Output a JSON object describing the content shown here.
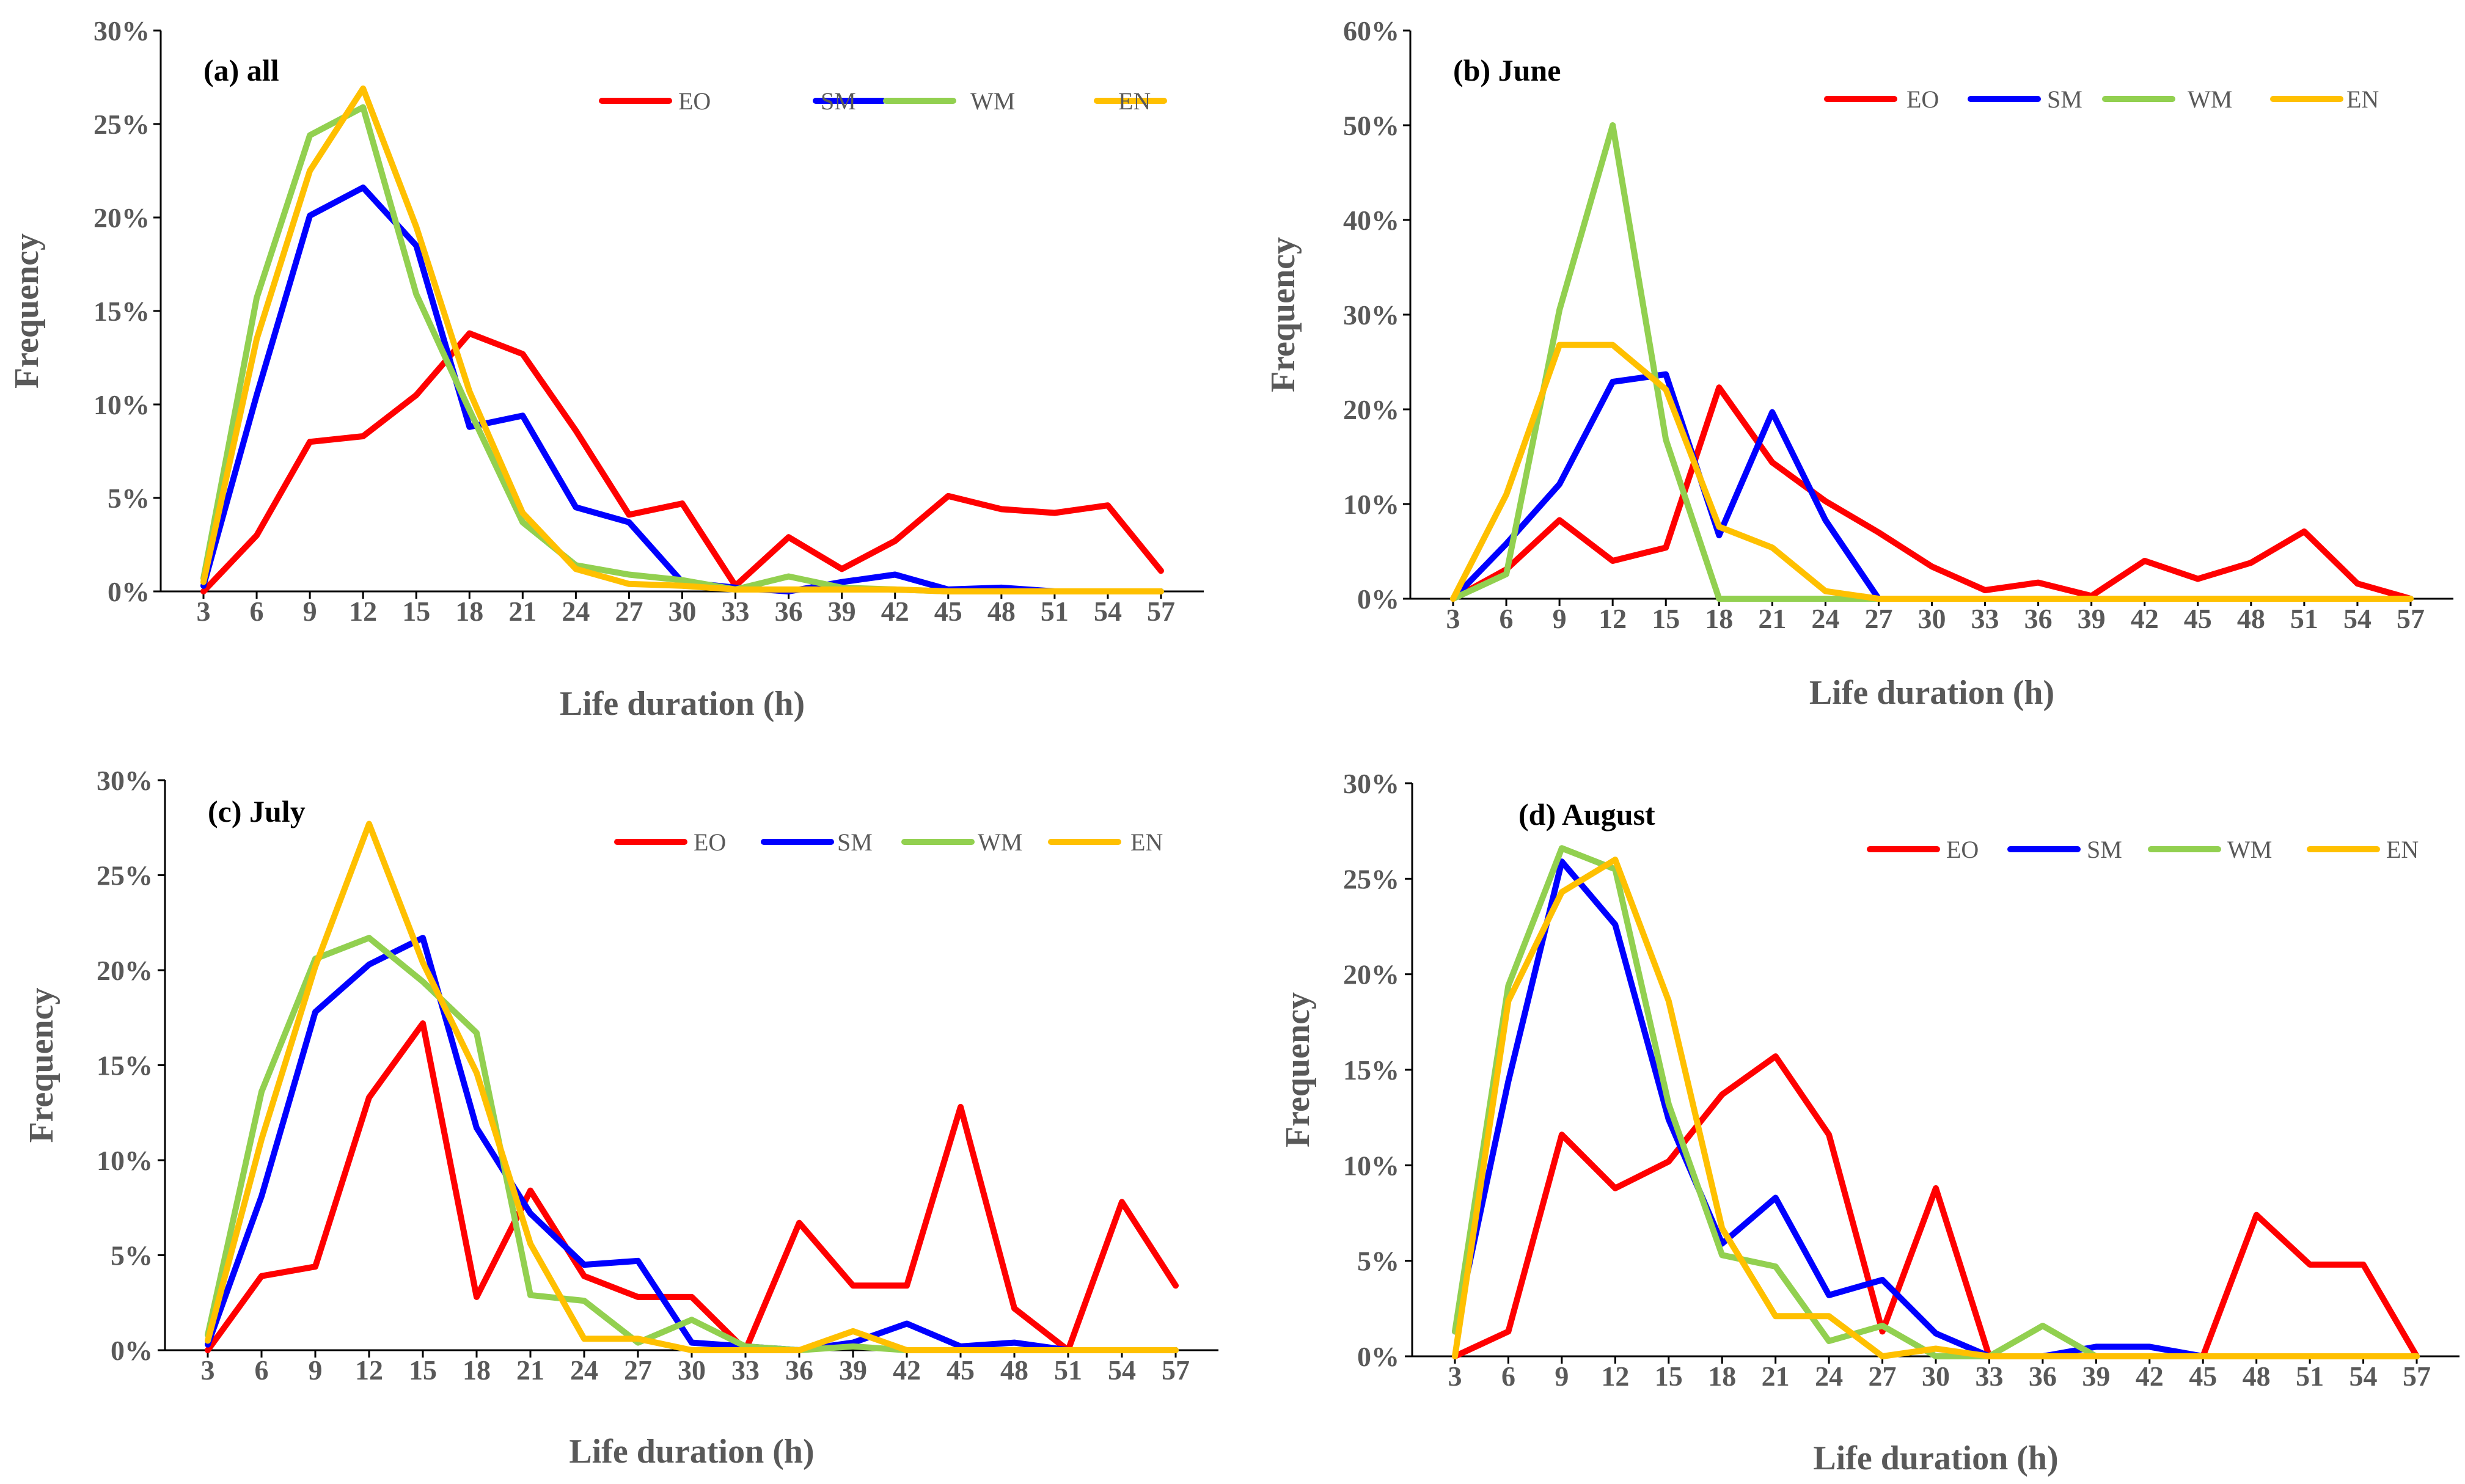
{
  "figure": {
    "colors": {
      "EO": "#ff0000",
      "SM": "#0000ff",
      "WM": "#92d050",
      "EN": "#ffc000",
      "axis": "#000000",
      "text": "#595959"
    }
  },
  "chart_data": [
    {
      "type": "line",
      "title": "(a) all",
      "xlabel": "Life duration (h)",
      "ylabel": "Frequency",
      "categories": [
        "3",
        "6",
        "9",
        "12",
        "15",
        "18",
        "21",
        "24",
        "27",
        "30",
        "33",
        "36",
        "39",
        "42",
        "45",
        "48",
        "51",
        "54",
        "57"
      ],
      "ylim": [
        0,
        30
      ],
      "yticks": [
        "0%",
        "5%",
        "10%",
        "15%",
        "20%",
        "25%",
        "30%"
      ],
      "legend": [
        "EO",
        "SM",
        "WM",
        "EN"
      ],
      "series": [
        {
          "name": "EO",
          "values": [
            0,
            3,
            8,
            8.3,
            10.5,
            13.8,
            12.7,
            8.6,
            4.1,
            4.7,
            0.3,
            2.9,
            1.2,
            2.7,
            5.1,
            4.4,
            4.2,
            4.6,
            1.1
          ]
        },
        {
          "name": "SM",
          "values": [
            0.3,
            10.5,
            20.1,
            21.6,
            18.5,
            8.8,
            9.4,
            4.5,
            3.7,
            0.5,
            0.2,
            0,
            0.5,
            0.9,
            0.1,
            0.2,
            0,
            0,
            0
          ]
        },
        {
          "name": "WM",
          "values": [
            0.7,
            15.7,
            24.4,
            25.9,
            15.9,
            9.7,
            3.7,
            1.4,
            0.9,
            0.6,
            0.1,
            0.8,
            0.2,
            0.1,
            0,
            0,
            0,
            0,
            0
          ]
        },
        {
          "name": "EN",
          "values": [
            0.5,
            13.5,
            22.5,
            26.9,
            19.5,
            10.7,
            4.2,
            1.2,
            0.4,
            0.3,
            0.1,
            0.1,
            0.1,
            0.1,
            0,
            0,
            0,
            0,
            0
          ]
        }
      ]
    },
    {
      "type": "line",
      "title": "(b) June",
      "xlabel": "Life duration (h)",
      "ylabel": "Frequency",
      "categories": [
        "3",
        "6",
        "9",
        "12",
        "15",
        "18",
        "21",
        "24",
        "27",
        "30",
        "33",
        "36",
        "39",
        "42",
        "45",
        "48",
        "51",
        "54",
        "57"
      ],
      "ylim": [
        0,
        60
      ],
      "yticks": [
        "0%",
        "10%",
        "20%",
        "30%",
        "40%",
        "50%",
        "60%"
      ],
      "legend": [
        "EO",
        "SM",
        "WM",
        "EN"
      ],
      "series": [
        {
          "name": "EO",
          "values": [
            0,
            3.1,
            8.3,
            4,
            5.4,
            22.3,
            14.4,
            10.3,
            7,
            3.4,
            0.9,
            1.7,
            0.3,
            4,
            2.1,
            3.8,
            7.1,
            1.6,
            0
          ]
        },
        {
          "name": "SM",
          "values": [
            0,
            5.8,
            12.1,
            22.9,
            23.7,
            6.7,
            19.7,
            8.3,
            0,
            0,
            0,
            0,
            0,
            0,
            0,
            0,
            0,
            0,
            0
          ]
        },
        {
          "name": "WM",
          "values": [
            0,
            2.6,
            30.5,
            50,
            16.8,
            0,
            0,
            0,
            0,
            0,
            0,
            0,
            0,
            0,
            0,
            0,
            0,
            0,
            0
          ]
        },
        {
          "name": "EN",
          "values": [
            0,
            11,
            26.8,
            26.8,
            22.1,
            7.6,
            5.4,
            0.8,
            0,
            0,
            0,
            0,
            0,
            0,
            0,
            0,
            0,
            0,
            0
          ]
        }
      ]
    },
    {
      "type": "line",
      "title": "(c) July",
      "xlabel": "Life duration (h)",
      "ylabel": "Frequency",
      "categories": [
        "3",
        "6",
        "9",
        "12",
        "15",
        "18",
        "21",
        "24",
        "27",
        "30",
        "33",
        "36",
        "39",
        "42",
        "45",
        "48",
        "51",
        "54",
        "57"
      ],
      "ylim": [
        0,
        30
      ],
      "yticks": [
        "0%",
        "5%",
        "10%",
        "15%",
        "20%",
        "25%",
        "30%"
      ],
      "legend": [
        "EO",
        "SM",
        "WM",
        "EN"
      ],
      "series": [
        {
          "name": "EO",
          "values": [
            0,
            3.9,
            4.4,
            13.3,
            17.2,
            2.8,
            8.4,
            3.9,
            2.8,
            2.8,
            0,
            6.7,
            3.4,
            3.4,
            12.8,
            2.2,
            0,
            7.8,
            3.4
          ]
        },
        {
          "name": "SM",
          "values": [
            0.3,
            8.1,
            17.8,
            20.3,
            21.7,
            11.7,
            7.2,
            4.5,
            4.7,
            0.4,
            0.2,
            0,
            0.4,
            1.4,
            0.2,
            0.4,
            0,
            0,
            0
          ]
        },
        {
          "name": "WM",
          "values": [
            0.8,
            13.6,
            20.6,
            21.7,
            19.4,
            16.7,
            2.9,
            2.6,
            0.4,
            1.6,
            0.2,
            0,
            0.2,
            0,
            0,
            0,
            0,
            0,
            0
          ]
        },
        {
          "name": "EN",
          "values": [
            0.5,
            11.1,
            20.2,
            27.7,
            20.4,
            14.6,
            5.6,
            0.6,
            0.6,
            0,
            0,
            0,
            1,
            0,
            0,
            0,
            0,
            0,
            0
          ]
        }
      ]
    },
    {
      "type": "line",
      "title": "(d) August",
      "xlabel": "Life duration (h)",
      "ylabel": "Frequency",
      "categories": [
        "3",
        "6",
        "9",
        "12",
        "15",
        "18",
        "21",
        "24",
        "27",
        "30",
        "33",
        "36",
        "39",
        "42",
        "45",
        "48",
        "51",
        "54",
        "57"
      ],
      "ylim": [
        0,
        30
      ],
      "yticks": [
        "0%",
        "5%",
        "10%",
        "15%",
        "20%",
        "25%",
        "30%"
      ],
      "legend": [
        "EO",
        "SM",
        "WM",
        "EN"
      ],
      "series": [
        {
          "name": "EO",
          "values": [
            0,
            1.3,
            11.6,
            8.8,
            10.2,
            13.7,
            15.7,
            11.6,
            1.3,
            8.8,
            0,
            0,
            0,
            0,
            0,
            7.4,
            4.8,
            4.8,
            0
          ]
        },
        {
          "name": "SM",
          "values": [
            1.3,
            14.4,
            25.9,
            22.6,
            12.4,
            5.9,
            8.3,
            3.2,
            4,
            1.2,
            0,
            0,
            0.5,
            0.5,
            0,
            0,
            0,
            0,
            0
          ]
        },
        {
          "name": "WM",
          "values": [
            1.3,
            19.4,
            26.6,
            25.5,
            13.2,
            5.3,
            4.7,
            0.8,
            1.6,
            0,
            0,
            1.6,
            0,
            0,
            0,
            0,
            0,
            0,
            0
          ]
        },
        {
          "name": "EN",
          "values": [
            0,
            18.6,
            24.3,
            26,
            18.6,
            6.7,
            2.1,
            2.1,
            0,
            0.4,
            0,
            0,
            0,
            0,
            0,
            0,
            0,
            0,
            0
          ]
        }
      ]
    }
  ]
}
